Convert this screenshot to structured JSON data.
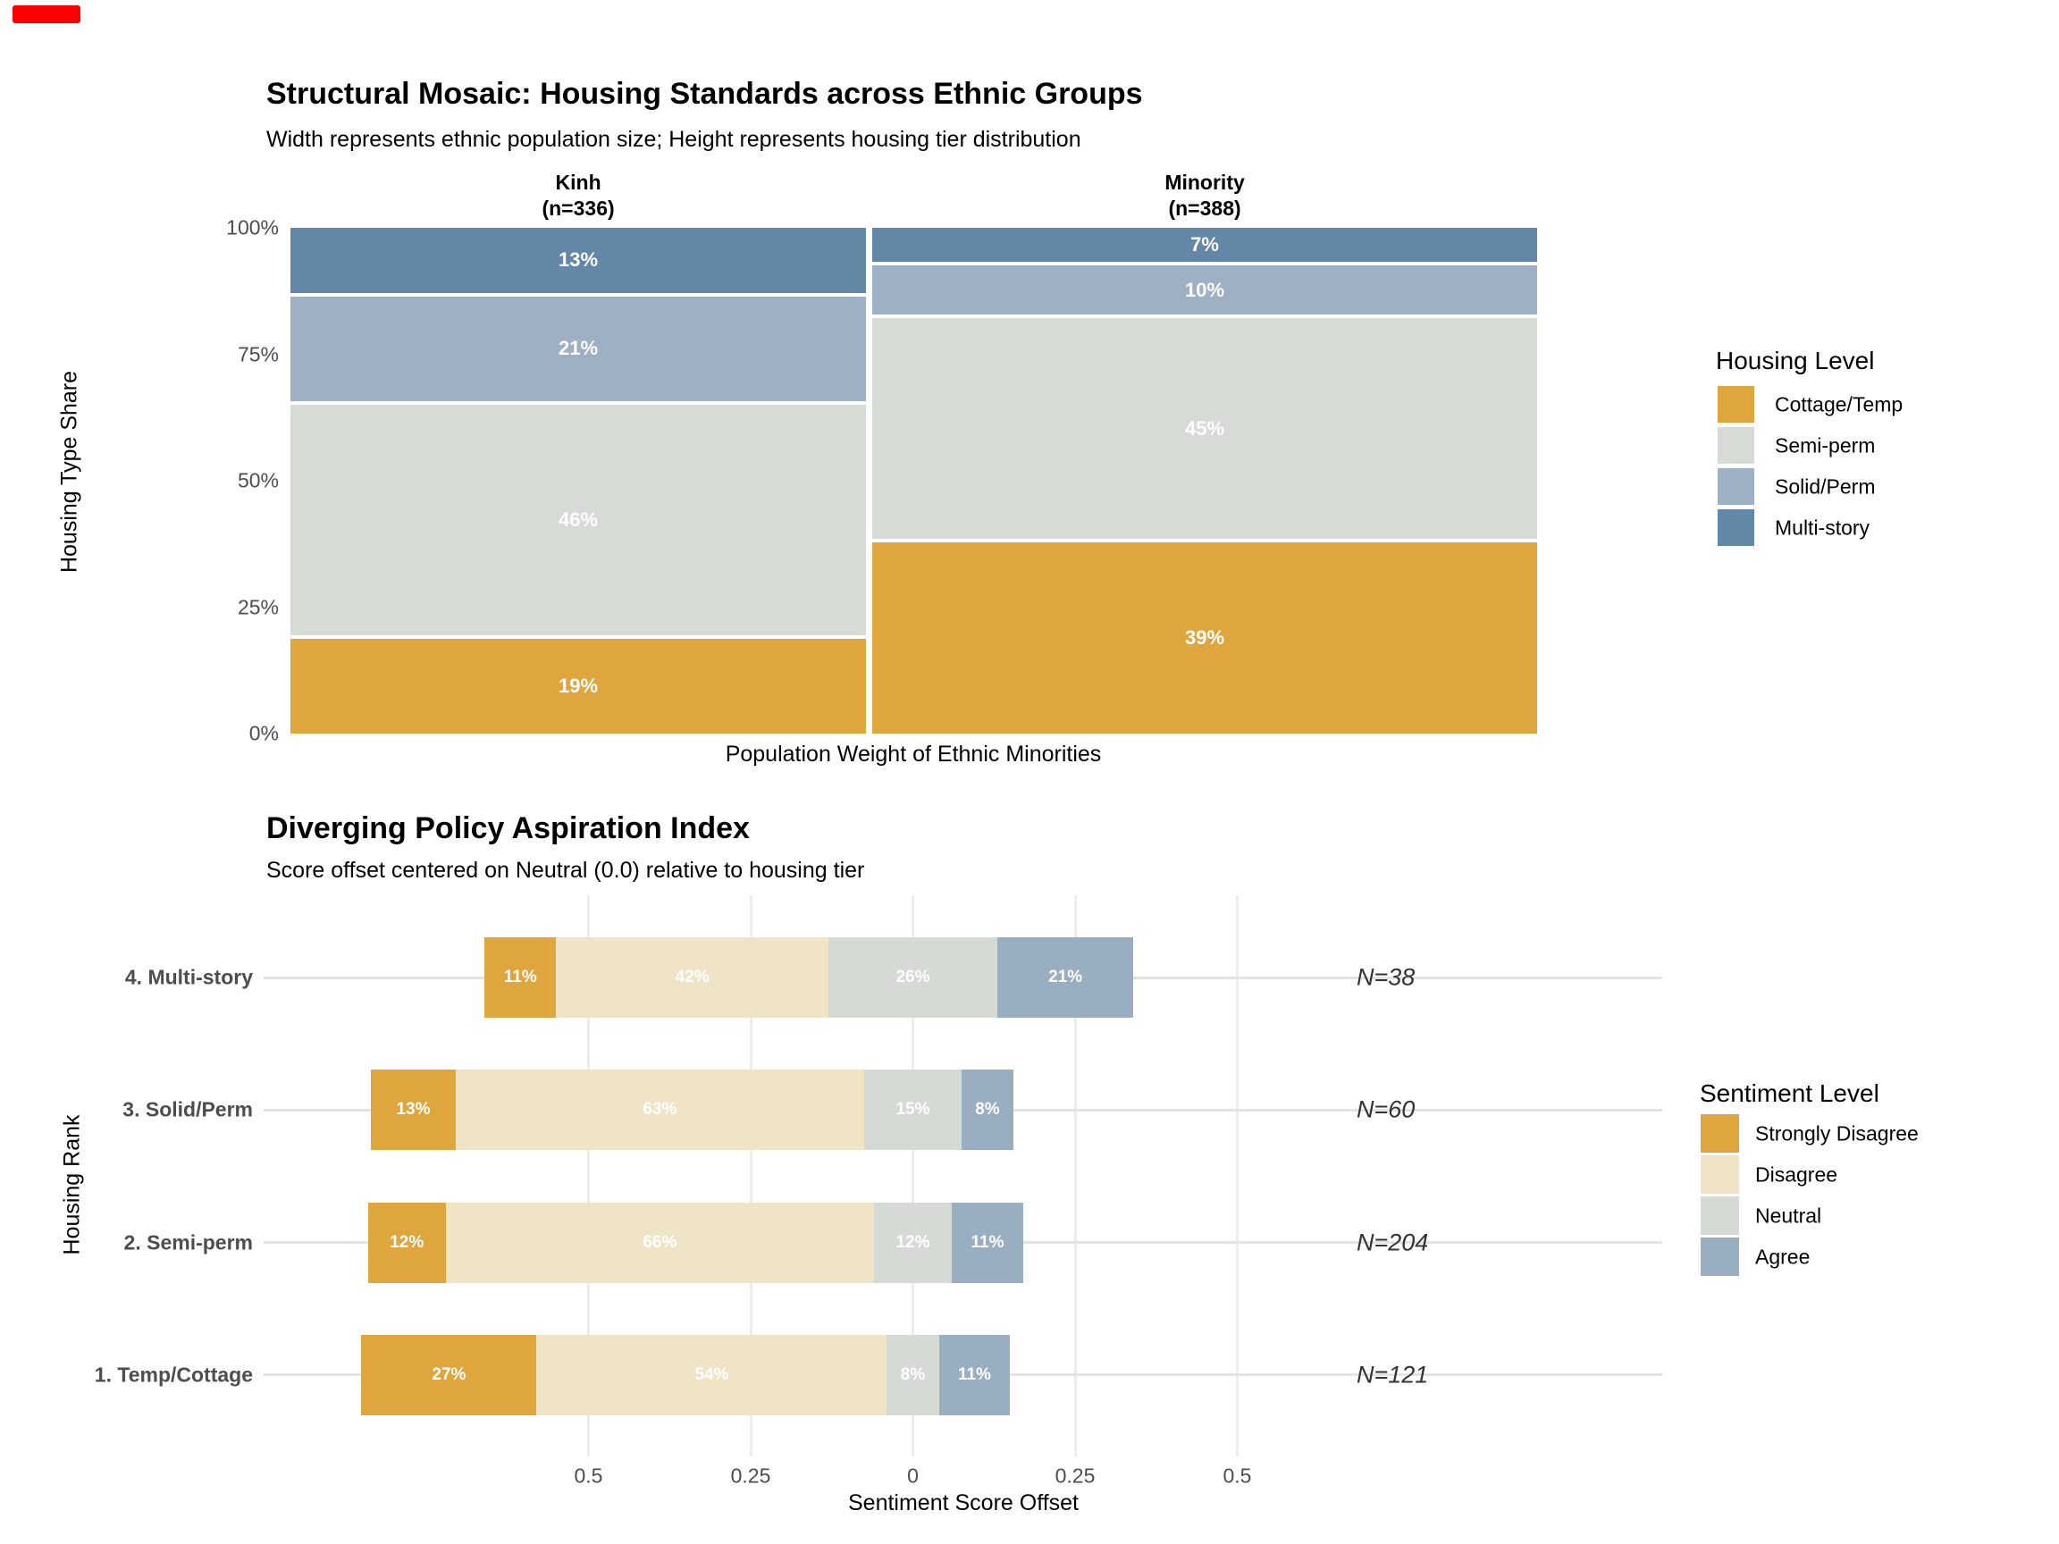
{
  "page": {
    "background": "#FFFFFF",
    "record_indicator": {
      "color": "#FF0000"
    }
  },
  "chart_data": [
    {
      "id": "housing-mosaic",
      "type": "mosaic",
      "title": "Structural Mosaic: Housing Standards across Ethnic Groups",
      "subtitle": "Width represents ethnic population size; Height represents housing tier distribution",
      "xlabel": "Population Weight of Ethnic Minorities",
      "ylabel": "Housing Type Share",
      "ytick_labels": [
        "100%",
        "75%",
        "50%",
        "25%",
        "0%"
      ],
      "ylim": [
        0,
        100
      ],
      "grid": false,
      "value_suffix": "%",
      "legend_position": "right",
      "legend_title": "Housing Level",
      "legend_order": [
        "Cottage/Temp",
        "Semi-perm",
        "Solid/Perm",
        "Multi-story"
      ],
      "columns": [
        {
          "name": "Kinh",
          "header_lines": [
            "Kinh",
            "(n=336)"
          ],
          "n": 336
        },
        {
          "name": "Minority",
          "header_lines": [
            "Minority",
            "(n=388)"
          ],
          "n": 388
        }
      ],
      "series": [
        {
          "name": "Multi-story",
          "color": "#6387A7",
          "values": [
            13,
            7
          ]
        },
        {
          "name": "Solid/Perm",
          "color": "#9EB1C4",
          "values": [
            21,
            10
          ]
        },
        {
          "name": "Semi-perm",
          "color": "#D6DCD5",
          "values": [
            46,
            45
          ]
        },
        {
          "name": "Cottage/Temp",
          "color": "#DFA63E",
          "values": [
            19,
            39
          ]
        }
      ],
      "series_note": "series listed top-to-bottom within each column; values are percent of column"
    },
    {
      "id": "policy-aspiration",
      "type": "diverging-bar",
      "title": "Diverging Policy Aspiration Index",
      "subtitle": "Score offset centered on Neutral (0.0) relative to housing tier",
      "xlabel": "Sentiment Score Offset",
      "ylabel": "Housing Rank",
      "categories": [
        "4. Multi-story",
        "3. Solid/Perm",
        "2. Semi-perm",
        "1. Temp/Cottage"
      ],
      "n_labels": [
        "N=38",
        "N=60",
        "N=204",
        "N=121"
      ],
      "xtick_labels": [
        "0.5",
        "0.25",
        "0",
        "0.25",
        "0.5"
      ],
      "xtick_values": [
        -0.5,
        -0.25,
        0,
        0.25,
        0.5
      ],
      "alignment": "neutral category midpoint centered on 0",
      "grid": true,
      "value_suffix": "%",
      "legend_position": "right",
      "legend_title": "Sentiment Level",
      "legend_order": [
        "Strongly Disagree",
        "Disagree",
        "Neutral",
        "Agree"
      ],
      "series": [
        {
          "name": "Strongly Disagree",
          "color": "#DFA63E",
          "values": [
            11,
            13,
            12,
            27
          ]
        },
        {
          "name": "Disagree",
          "color": "#F0E4C6",
          "values": [
            42,
            63,
            66,
            54
          ]
        },
        {
          "name": "Neutral",
          "color": "#D5DBD4",
          "values": [
            26,
            15,
            12,
            8
          ]
        },
        {
          "name": "Agree",
          "color": "#9AAEC2",
          "values": [
            21,
            8,
            11,
            11
          ]
        }
      ]
    }
  ]
}
